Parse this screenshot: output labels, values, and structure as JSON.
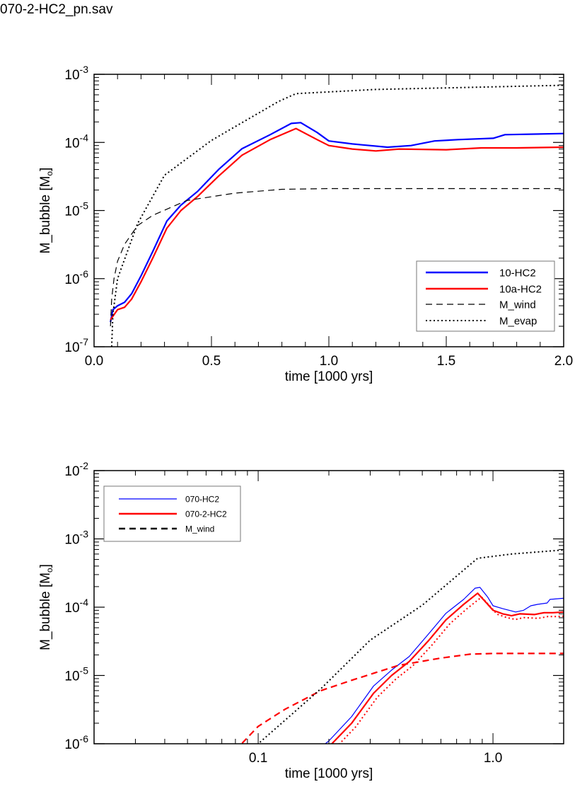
{
  "file_label": "070-2-HC2_pn.sav",
  "colors": {
    "blue": "#0000ff",
    "red": "#ff0000",
    "black": "#000000"
  },
  "chart_data": [
    {
      "type": "line",
      "xscale": "linear",
      "yscale": "log",
      "xlabel": "time [1000 yrs]",
      "ylabel": "M_bubble [M",
      "ylabel_sub": "o",
      "ylabel_end": "]",
      "xlim": [
        0.0,
        2.0
      ],
      "ylim": [
        1e-07,
        0.001
      ],
      "xticks": [
        "0.0",
        "0.5",
        "1.0",
        "1.5",
        "2.0"
      ],
      "xtick_values": [
        0.0,
        0.5,
        1.0,
        1.5,
        2.0
      ],
      "yticks": [
        {
          "base": "10",
          "exp": "-7"
        },
        {
          "base": "10",
          "exp": "-6"
        },
        {
          "base": "10",
          "exp": "-5"
        },
        {
          "base": "10",
          "exp": "-4"
        },
        {
          "base": "10",
          "exp": "-3"
        }
      ],
      "legend_position": "lower-right",
      "series": [
        {
          "name": "10-HC2",
          "color": "#0000ff",
          "style": "solid",
          "weight": "thick",
          "points": [
            [
              0.07,
              2.3e-07
            ],
            [
              0.08,
              3.5e-07
            ],
            [
              0.1,
              4e-07
            ],
            [
              0.13,
              4.5e-07
            ],
            [
              0.16,
              6e-07
            ],
            [
              0.2,
              1.1e-06
            ],
            [
              0.25,
              2.5e-06
            ],
            [
              0.31,
              7e-06
            ],
            [
              0.37,
              1.2e-05
            ],
            [
              0.44,
              1.9e-05
            ],
            [
              0.53,
              4e-05
            ],
            [
              0.63,
              8.1e-05
            ],
            [
              0.75,
              0.00013
            ],
            [
              0.84,
              0.00019
            ],
            [
              0.88,
              0.000195
            ],
            [
              0.95,
              0.00014
            ],
            [
              1.0,
              0.000105
            ],
            [
              1.1,
              9.5e-05
            ],
            [
              1.25,
              8.5e-05
            ],
            [
              1.35,
              9e-05
            ],
            [
              1.45,
              0.000105
            ],
            [
              1.55,
              0.00011
            ],
            [
              1.7,
              0.000115
            ],
            [
              1.75,
              0.00013
            ],
            [
              2.0,
              0.000135
            ]
          ]
        },
        {
          "name": "10a-HC2",
          "color": "#ff0000",
          "style": "solid",
          "weight": "thick",
          "points": [
            [
              0.07,
              2.5e-07
            ],
            [
              0.1,
              3.5e-07
            ],
            [
              0.13,
              3.8e-07
            ],
            [
              0.16,
              5e-07
            ],
            [
              0.2,
              9e-07
            ],
            [
              0.25,
              2e-06
            ],
            [
              0.31,
              5.5e-06
            ],
            [
              0.37,
              1e-05
            ],
            [
              0.44,
              1.6e-05
            ],
            [
              0.53,
              3.2e-05
            ],
            [
              0.63,
              6.5e-05
            ],
            [
              0.75,
              0.00011
            ],
            [
              0.86,
              0.00016
            ],
            [
              0.95,
              0.00011
            ],
            [
              1.0,
              9e-05
            ],
            [
              1.1,
              8e-05
            ],
            [
              1.2,
              7.5e-05
            ],
            [
              1.3,
              8e-05
            ],
            [
              1.5,
              7.8e-05
            ],
            [
              1.65,
              8.3e-05
            ],
            [
              1.8,
              8.3e-05
            ],
            [
              2.0,
              8.5e-05
            ]
          ]
        },
        {
          "name": "M_wind",
          "color": "#000000",
          "style": "dashed",
          "weight": "thin",
          "points": [
            [
              0.07,
              2e-07
            ],
            [
              0.075,
              5e-07
            ],
            [
              0.085,
              1e-06
            ],
            [
              0.1,
              1.8e-06
            ],
            [
              0.13,
              3.2e-06
            ],
            [
              0.185,
              6e-06
            ],
            [
              0.25,
              8.5e-06
            ],
            [
              0.394,
              1.4e-05
            ],
            [
              0.6,
              1.8e-05
            ],
            [
              0.8,
              2.05e-05
            ],
            [
              1.0,
              2.1e-05
            ],
            [
              2.0,
              2.1e-05
            ]
          ]
        },
        {
          "name": "M_evap",
          "color": "#000000",
          "style": "dotted",
          "weight": "thin",
          "points": [
            [
              0.075,
              1e-07
            ],
            [
              0.08,
              3e-07
            ],
            [
              0.1,
              1e-06
            ],
            [
              0.185,
              6.4e-06
            ],
            [
              0.3,
              3.3e-05
            ],
            [
              0.5,
              0.000107
            ],
            [
              0.786,
              0.0004
            ],
            [
              0.86,
              0.00052
            ],
            [
              1.2,
              0.0006
            ],
            [
              2.0,
              0.00069
            ]
          ]
        }
      ]
    },
    {
      "type": "line",
      "xscale": "log",
      "yscale": "log",
      "xlabel": "time [1000 yrs]",
      "ylabel": "M_bubble [M",
      "ylabel_sub": "o",
      "ylabel_end": "]",
      "xlim": [
        0.02,
        2.0
      ],
      "ylim": [
        1e-06,
        0.01
      ],
      "xticks": [
        "0.1",
        "1.0"
      ],
      "xtick_values": [
        0.1,
        1.0
      ],
      "yticks": [
        {
          "base": "10",
          "exp": "-6"
        },
        {
          "base": "10",
          "exp": "-5"
        },
        {
          "base": "10",
          "exp": "-4"
        },
        {
          "base": "10",
          "exp": "-3"
        },
        {
          "base": "10",
          "exp": "-2"
        }
      ],
      "legend_position": "upper-left",
      "series": [
        {
          "name": "070-HC2",
          "color": "#0000ff",
          "style": "solid",
          "weight": "thin",
          "source": 0
        },
        {
          "name": "070-2-HC2",
          "color": "#ff0000",
          "style": "solid",
          "weight": "thick",
          "source": 1
        },
        {
          "name": "M_wind",
          "color": "#ff0000",
          "style": "dashed",
          "weight": "thick",
          "source": 2
        },
        {
          "color": "#000000",
          "style": "dotted",
          "weight": "thin",
          "source": 3
        }
      ]
    }
  ]
}
